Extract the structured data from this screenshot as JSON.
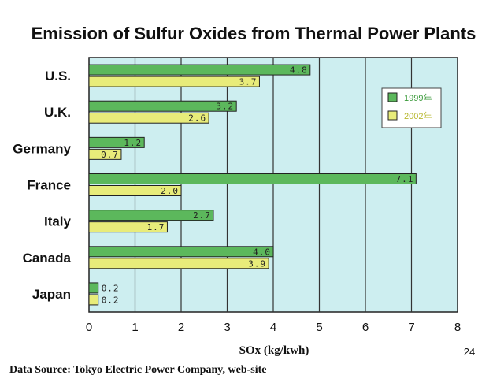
{
  "page_number": "24",
  "source": "Data Source: Tokyo Electric Power Company, web-site",
  "colors": {
    "plot_bg": "#cdeef0",
    "series_1999": "#5cb85c",
    "series_2002": "#e8ec7a",
    "grid": "#333333",
    "legend_text_1999": "#3a9a3a",
    "legend_text_2002": "#b8b830"
  },
  "chart_data": {
    "type": "bar",
    "orientation": "horizontal",
    "title": "Emission of Sulfur Oxides from Thermal Power Plants",
    "xlabel": "SOx (kg/kwh)",
    "ylabel": "",
    "xlim": [
      0,
      8
    ],
    "xticks": [
      "0",
      "1",
      "2",
      "3",
      "4",
      "5",
      "6",
      "7",
      "8"
    ],
    "grid": true,
    "legend_position": "top-right",
    "categories": [
      "U.S.",
      "U.K.",
      "Germany",
      "France",
      "Italy",
      "Canada",
      "Japan"
    ],
    "series": [
      {
        "name": "1999年",
        "values": [
          4.8,
          3.2,
          1.2,
          7.1,
          2.7,
          4.0,
          0.2
        ],
        "labels": [
          "4.8",
          "3.2",
          "1.2",
          "7.1",
          "2.7",
          "4.0",
          "0.2"
        ]
      },
      {
        "name": "2002年",
        "values": [
          3.7,
          2.6,
          0.7,
          2.0,
          1.7,
          3.9,
          0.2
        ],
        "labels": [
          "3.7",
          "2.6",
          "0.7",
          "2.0",
          "1.7",
          "3.9",
          "0.2"
        ]
      }
    ]
  }
}
